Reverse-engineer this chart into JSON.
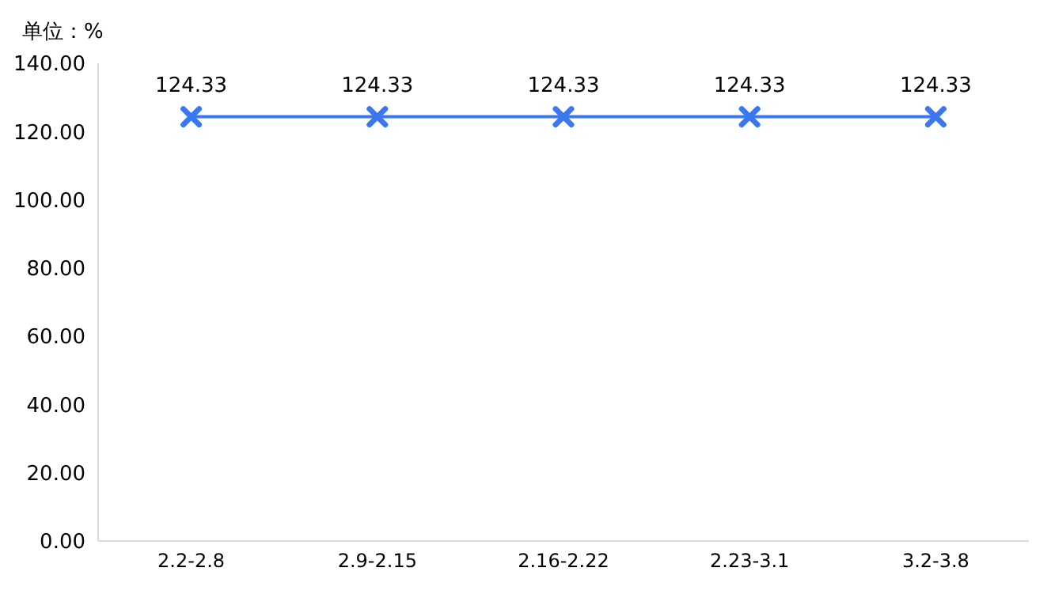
{
  "chart_data": {
    "type": "line",
    "ylabel": "单位：%",
    "categories": [
      "2.2-2.8",
      "2.9-2.15",
      "2.16-2.22",
      "2.23-3.1",
      "3.2-3.8"
    ],
    "series": [
      {
        "color": "#3b78f0",
        "values": [
          124.33,
          124.33,
          124.33,
          124.33,
          124.33
        ]
      }
    ],
    "ylim": [
      0,
      140
    ],
    "yticks": [
      {
        "value": 0,
        "label": "0.00"
      },
      {
        "value": 20,
        "label": "20.00"
      },
      {
        "value": 40,
        "label": "40.00"
      },
      {
        "value": 60,
        "label": "60.00"
      },
      {
        "value": 80,
        "label": "80.00"
      },
      {
        "value": 100,
        "label": "100.00"
      },
      {
        "value": 120,
        "label": "120.00"
      },
      {
        "value": 140,
        "label": "140.00"
      }
    ],
    "marker": "cross",
    "line_style": "solid",
    "data_labels": true,
    "grid": false,
    "legend": false
  }
}
